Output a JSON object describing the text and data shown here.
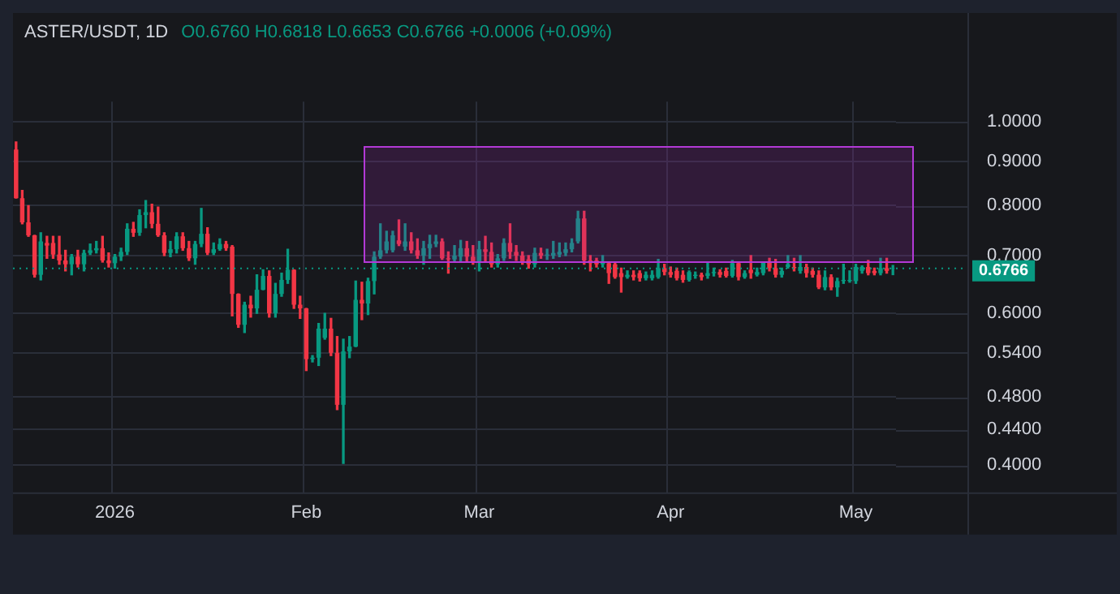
{
  "chart_data": {
    "type": "candlestick",
    "title": "ASTER/USDT, 1D",
    "subtitle": "O0.6760 H0.6818 L0.6653 C0.6766 +0.0006 (+0.09%)",
    "categories": [
      null,
      null,
      null,
      null,
      null,
      null,
      null,
      null,
      null,
      null,
      null,
      null,
      null,
      null,
      null,
      null,
      "2026",
      null,
      null,
      null,
      null,
      null,
      null,
      null,
      null,
      null,
      null,
      null,
      null,
      null,
      null,
      null,
      null,
      null,
      null,
      null,
      null,
      null,
      null,
      null,
      null,
      null,
      null,
      null,
      null,
      null,
      null,
      "Feb",
      null,
      null,
      null,
      null,
      null,
      null,
      null,
      null,
      null,
      null,
      null,
      null,
      null,
      null,
      null,
      null,
      null,
      null,
      null,
      null,
      null,
      null,
      null,
      null,
      null,
      null,
      null,
      "Mar",
      null,
      null,
      null,
      null,
      null,
      null,
      null,
      null,
      null,
      null,
      null,
      null,
      null,
      null,
      null,
      null,
      null,
      null,
      null,
      null,
      null,
      null,
      null,
      null,
      null,
      null,
      null,
      null,
      null,
      null,
      "Apr",
      null,
      null,
      null,
      null,
      null,
      null,
      null,
      null,
      null,
      null,
      null,
      null,
      null,
      null,
      null,
      null,
      null,
      null,
      null,
      null,
      null,
      null,
      null,
      null,
      null,
      null,
      null,
      null,
      null,
      "May",
      null,
      null,
      null,
      null,
      null,
      null
    ],
    "ohlc": [
      [
        0.929,
        0.948,
        0.816,
        0.816
      ],
      [
        0.816,
        0.833,
        0.762,
        0.765
      ],
      [
        0.765,
        0.8,
        0.737,
        0.739
      ],
      [
        0.739,
        0.739,
        0.661,
        0.665
      ],
      [
        0.665,
        0.744,
        0.656,
        0.727
      ],
      [
        0.724,
        0.737,
        0.695,
        0.719
      ],
      [
        0.724,
        0.737,
        0.695,
        0.702
      ],
      [
        0.702,
        0.737,
        0.684,
        0.691
      ],
      [
        0.691,
        0.71,
        0.672,
        0.684
      ],
      [
        0.684,
        0.702,
        0.665,
        0.698
      ],
      [
        0.698,
        0.71,
        0.679,
        0.684
      ],
      [
        0.684,
        0.71,
        0.672,
        0.705
      ],
      [
        0.705,
        0.722,
        0.702,
        0.71
      ],
      [
        0.71,
        0.727,
        0.705,
        0.714
      ],
      [
        0.714,
        0.737,
        0.688,
        0.691
      ],
      [
        0.691,
        0.705,
        0.679,
        0.686
      ],
      [
        0.686,
        0.702,
        0.677,
        0.698
      ],
      [
        0.698,
        0.714,
        0.691,
        0.707
      ],
      [
        0.707,
        0.762,
        0.702,
        0.752
      ],
      [
        0.752,
        0.765,
        0.737,
        0.744
      ],
      [
        0.744,
        0.791,
        0.739,
        0.78
      ],
      [
        0.78,
        0.811,
        0.754,
        0.786
      ],
      [
        0.786,
        0.803,
        0.754,
        0.762
      ],
      [
        0.762,
        0.797,
        0.737,
        0.739
      ],
      [
        0.739,
        0.744,
        0.7,
        0.705
      ],
      [
        0.705,
        0.727,
        0.698,
        0.712
      ],
      [
        0.712,
        0.744,
        0.705,
        0.737
      ],
      [
        0.737,
        0.744,
        0.71,
        0.714
      ],
      [
        0.714,
        0.727,
        0.691,
        0.695
      ],
      [
        0.695,
        0.727,
        0.684,
        0.722
      ],
      [
        0.722,
        0.794,
        0.717,
        0.742
      ],
      [
        0.742,
        0.754,
        0.702,
        0.705
      ],
      [
        0.705,
        0.724,
        0.702,
        0.712
      ],
      [
        0.712,
        0.732,
        0.71,
        0.722
      ],
      [
        0.722,
        0.727,
        0.71,
        0.714
      ],
      [
        0.717,
        0.719,
        0.596,
        0.632
      ],
      [
        0.632,
        0.632,
        0.578,
        0.582
      ],
      [
        0.582,
        0.618,
        0.57,
        0.614
      ],
      [
        0.614,
        0.628,
        0.594,
        0.608
      ],
      [
        0.608,
        0.665,
        0.6,
        0.639
      ],
      [
        0.639,
        0.674,
        0.639,
        0.663
      ],
      [
        0.663,
        0.672,
        0.594,
        0.6
      ],
      [
        0.6,
        0.65,
        0.594,
        0.632
      ],
      [
        0.632,
        0.668,
        0.628,
        0.656
      ],
      [
        0.656,
        0.712,
        0.65,
        0.674
      ],
      [
        0.674,
        0.674,
        0.608,
        0.614
      ],
      [
        0.614,
        0.628,
        0.592,
        0.608
      ],
      [
        0.608,
        0.608,
        0.515,
        0.531
      ],
      [
        0.531,
        0.536,
        0.527,
        0.533
      ],
      [
        0.533,
        0.584,
        0.522,
        0.576
      ],
      [
        0.562,
        0.6,
        0.56,
        0.576
      ],
      [
        0.576,
        0.592,
        0.536,
        0.54
      ],
      [
        0.54,
        0.564,
        0.464,
        0.47
      ],
      [
        0.47,
        0.56,
        0.402,
        0.542
      ],
      [
        0.542,
        0.564,
        0.533,
        0.549
      ],
      [
        0.549,
        0.654,
        0.549,
        0.622
      ],
      [
        0.622,
        0.652,
        0.59,
        0.616
      ],
      [
        0.616,
        0.659,
        0.598,
        0.654
      ],
      [
        0.654,
        0.707,
        0.632,
        0.698
      ],
      [
        0.698,
        0.762,
        0.695,
        0.71
      ],
      [
        0.71,
        0.747,
        0.705,
        0.727
      ],
      [
        0.71,
        0.747,
        0.707,
        0.739
      ],
      [
        0.729,
        0.77,
        0.719,
        0.722
      ],
      [
        0.717,
        0.762,
        0.71,
        0.727
      ],
      [
        0.727,
        0.744,
        0.705,
        0.71
      ],
      [
        0.71,
        0.732,
        0.695,
        0.7
      ],
      [
        0.7,
        0.727,
        0.684,
        0.714
      ],
      [
        0.714,
        0.739,
        0.695,
        0.722
      ],
      [
        0.722,
        0.739,
        0.717,
        0.727
      ],
      [
        0.727,
        0.732,
        0.693,
        0.695
      ],
      [
        0.695,
        0.707,
        0.668,
        0.693
      ],
      [
        0.693,
        0.719,
        0.688,
        0.7
      ],
      [
        0.698,
        0.729,
        0.688,
        0.714
      ],
      [
        0.714,
        0.727,
        0.688,
        0.698
      ],
      [
        0.698,
        0.719,
        0.684,
        0.688
      ],
      [
        0.688,
        0.727,
        0.672,
        0.712
      ],
      [
        0.712,
        0.737,
        0.688,
        0.707
      ],
      [
        0.707,
        0.724,
        0.679,
        0.684
      ],
      [
        0.684,
        0.702,
        0.679,
        0.695
      ],
      [
        0.695,
        0.732,
        0.691,
        0.724
      ],
      [
        0.724,
        0.762,
        0.695,
        0.707
      ],
      [
        0.707,
        0.719,
        0.691,
        0.7
      ],
      [
        0.7,
        0.707,
        0.684,
        0.688
      ],
      [
        0.693,
        0.7,
        0.677,
        0.684
      ],
      [
        0.684,
        0.714,
        0.679,
        0.705
      ],
      [
        0.705,
        0.714,
        0.695,
        0.7
      ],
      [
        0.7,
        0.712,
        0.693,
        0.702
      ],
      [
        0.7,
        0.727,
        0.695,
        0.705
      ],
      [
        0.702,
        0.724,
        0.698,
        0.707
      ],
      [
        0.705,
        0.724,
        0.7,
        0.712
      ],
      [
        0.712,
        0.732,
        0.707,
        0.724
      ],
      [
        0.727,
        0.788,
        0.724,
        0.773
      ],
      [
        0.773,
        0.788,
        0.684,
        0.691
      ],
      [
        0.691,
        0.7,
        0.672,
        0.686
      ],
      [
        0.691,
        0.695,
        0.679,
        0.684
      ],
      [
        0.684,
        0.7,
        0.679,
        0.688
      ],
      [
        0.686,
        0.688,
        0.65,
        0.668
      ],
      [
        0.684,
        0.688,
        0.659,
        0.661
      ],
      [
        0.668,
        0.677,
        0.635,
        0.661
      ],
      [
        0.661,
        0.672,
        0.659,
        0.665
      ],
      [
        0.665,
        0.672,
        0.656,
        0.661
      ],
      [
        0.668,
        0.672,
        0.654,
        0.659
      ],
      [
        0.659,
        0.67,
        0.656,
        0.665
      ],
      [
        0.659,
        0.672,
        0.656,
        0.665
      ],
      [
        0.661,
        0.693,
        0.659,
        0.677
      ],
      [
        0.677,
        0.684,
        0.665,
        0.67
      ],
      [
        0.67,
        0.679,
        0.661,
        0.665
      ],
      [
        0.672,
        0.677,
        0.656,
        0.659
      ],
      [
        0.665,
        0.672,
        0.652,
        0.656
      ],
      [
        0.656,
        0.672,
        0.654,
        0.67
      ],
      [
        0.663,
        0.67,
        0.659,
        0.665
      ],
      [
        0.665,
        0.668,
        0.656,
        0.661
      ],
      [
        0.663,
        0.686,
        0.659,
        0.668
      ],
      [
        0.668,
        0.677,
        0.663,
        0.67
      ],
      [
        0.67,
        0.674,
        0.661,
        0.665
      ],
      [
        0.672,
        0.677,
        0.661,
        0.663
      ],
      [
        0.663,
        0.691,
        0.661,
        0.686
      ],
      [
        0.686,
        0.688,
        0.656,
        0.661
      ],
      [
        0.661,
        0.672,
        0.659,
        0.668
      ],
      [
        0.674,
        0.7,
        0.659,
        0.668
      ],
      [
        0.665,
        0.677,
        0.663,
        0.67
      ],
      [
        0.668,
        0.688,
        0.665,
        0.688
      ],
      [
        0.688,
        0.695,
        0.672,
        0.677
      ],
      [
        0.677,
        0.693,
        0.661,
        0.665
      ],
      [
        0.665,
        0.677,
        0.661,
        0.672
      ],
      [
        0.679,
        0.7,
        0.677,
        0.684
      ],
      [
        0.679,
        0.695,
        0.672,
        0.677
      ],
      [
        0.672,
        0.7,
        0.668,
        0.679
      ],
      [
        0.679,
        0.684,
        0.661,
        0.668
      ],
      [
        0.672,
        0.677,
        0.661,
        0.665
      ],
      [
        0.665,
        0.672,
        0.641,
        0.643
      ],
      [
        0.643,
        0.672,
        0.639,
        0.661
      ],
      [
        0.661,
        0.665,
        0.639,
        0.643
      ],
      [
        0.643,
        0.659,
        0.628,
        0.654
      ],
      [
        0.654,
        0.684,
        0.65,
        0.656
      ],
      [
        0.654,
        0.672,
        0.652,
        0.656
      ],
      [
        0.654,
        0.684,
        0.65,
        0.679
      ],
      [
        0.672,
        0.681,
        0.668,
        0.679
      ],
      [
        0.679,
        0.691,
        0.665,
        0.668
      ],
      [
        0.672,
        0.677,
        0.665,
        0.668
      ],
      [
        0.668,
        0.695,
        0.665,
        0.677
      ],
      [
        0.677,
        0.695,
        0.668,
        0.672
      ],
      [
        0.676,
        0.6818,
        0.6653,
        0.6766
      ]
    ],
    "colors": [
      "#f23645",
      "#f23645",
      "#f23645",
      "#f23645",
      "#089981",
      "#f23645",
      "#f23645",
      "#f23645",
      "#f23645",
      "#089981",
      "#f23645",
      "#089981",
      "#089981",
      "#089981",
      "#f23645",
      "#f23645",
      "#089981",
      "#089981",
      "#089981",
      "#f23645",
      "#089981",
      "#089981",
      "#f23645",
      "#f23645",
      "#f23645",
      "#089981",
      "#089981",
      "#f23645",
      "#f23645",
      "#089981",
      "#089981",
      "#f23645",
      "#089981",
      "#089981",
      "#f23645",
      "#f23645",
      "#f23645",
      "#089981",
      "#f23645",
      "#089981",
      "#089981",
      "#f23645",
      "#089981",
      "#089981",
      "#089981",
      "#f23645",
      "#f23645",
      "#f23645",
      "#089981",
      "#089981",
      "#089981",
      "#f23645",
      "#f23645",
      "#089981",
      "#089981",
      "#089981",
      "#f23645",
      "#089981",
      "#089981",
      "#089981",
      "#089981",
      "#089981",
      "#f23645",
      "#089981",
      "#f23645",
      "#f23645",
      "#089981",
      "#089981",
      "#089981",
      "#f23645",
      "#f23645",
      "#089981",
      "#089981",
      "#f23645",
      "#f23645",
      "#089981",
      "#f23645",
      "#f23645",
      "#089981",
      "#089981",
      "#f23645",
      "#f23645",
      "#f23645",
      "#f23645",
      "#089981",
      "#f23645",
      "#089981",
      "#089981",
      "#089981",
      "#089981",
      "#089981",
      "#089981",
      "#f23645",
      "#f23645",
      "#f23645",
      "#089981",
      "#f23645",
      "#f23645",
      "#f23645",
      "#089981",
      "#f23645",
      "#f23645",
      "#089981",
      "#089981",
      "#089981",
      "#f23645",
      "#f23645",
      "#f23645",
      "#f23645",
      "#089981",
      "#089981",
      "#f23645",
      "#089981",
      "#089981",
      "#f23645",
      "#f23645",
      "#089981",
      "#f23645",
      "#089981",
      "#f23645",
      "#089981",
      "#089981",
      "#f23645",
      "#f23645",
      "#089981",
      "#089981",
      "#f23645",
      "#089981",
      "#f23645",
      "#f23645",
      "#f23645",
      "#089981",
      "#f23645",
      "#089981",
      "#089981",
      "#089981",
      "#089981",
      "#089981",
      "#f23645",
      "#f23645",
      "#089981",
      "#f23645",
      "#089981"
    ],
    "log": true,
    "ylim": [
      0.372,
      1.056
    ],
    "yticks": [
      {
        "value": 0.4,
        "label": "0.4000"
      },
      {
        "value": 0.44,
        "label": "0.4400"
      },
      {
        "value": 0.48,
        "label": "0.4800"
      },
      {
        "value": 0.54,
        "label": "0.5400"
      },
      {
        "value": 0.6,
        "label": "0.6000"
      },
      {
        "value": 0.7,
        "label": "0.7000"
      },
      {
        "value": 0.8,
        "label": "0.8000"
      },
      {
        "value": 0.9,
        "label": "0.9000"
      },
      {
        "value": 1.0,
        "label": "1.0000"
      }
    ],
    "grid": true,
    "legend": false,
    "ref_lines": [
      {
        "axis": "y",
        "value": 0.6766,
        "label": "0.6766",
        "color": "#089981",
        "line_style": "dotted"
      }
    ]
  }
}
